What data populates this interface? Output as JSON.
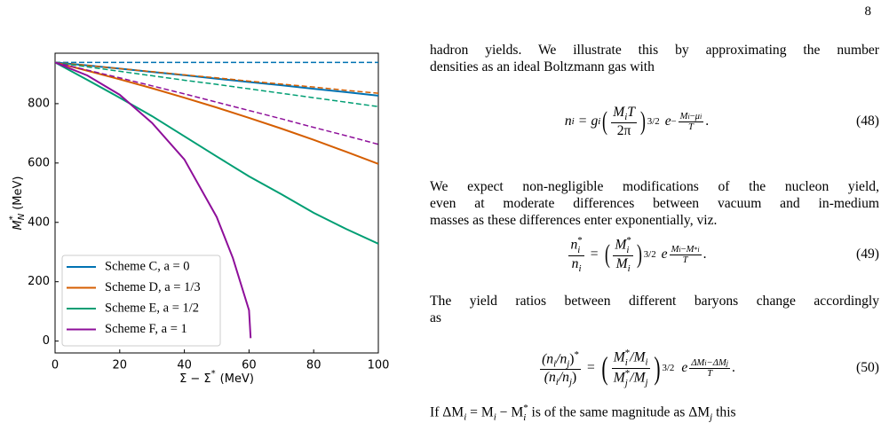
{
  "page_number": "8",
  "chart_data": {
    "type": "line",
    "ylabel": {
      "symbol": "M",
      "sup": "*",
      "sub": "N",
      "unit": "(MeV)"
    },
    "xlabel": {
      "main": "Σ − Σ",
      "sup": "*",
      "unit": "(MeV)"
    },
    "xlim": [
      0,
      100
    ],
    "ylim": [
      -40,
      970
    ],
    "xticks": [
      0,
      20,
      40,
      60,
      80,
      100
    ],
    "yticks": [
      0,
      200,
      400,
      600,
      800
    ],
    "legend": "lower left",
    "series": [
      {
        "name": "Scheme C, a = 0",
        "color": "#0072b2",
        "x": [
          0,
          10,
          20,
          30,
          40,
          50,
          60,
          70,
          80,
          90,
          100
        ],
        "values": [
          939,
          929,
          918,
          907,
          896,
          884,
          873,
          862,
          850,
          839,
          827
        ]
      },
      {
        "name": "Scheme D, a = 1/3",
        "color": "#d55e00",
        "x": [
          0,
          10,
          20,
          30,
          40,
          50,
          60,
          70,
          80,
          90,
          100
        ],
        "values": [
          939,
          911,
          882,
          852,
          820,
          787,
          752,
          716,
          678,
          638,
          597
        ]
      },
      {
        "name": "Scheme E, a = 1/2",
        "color": "#009e73",
        "x": [
          0,
          10,
          20,
          30,
          40,
          50,
          60,
          70,
          80,
          90,
          100
        ],
        "values": [
          939,
          880,
          820,
          758,
          690,
          622,
          555,
          495,
          432,
          378,
          328
        ]
      },
      {
        "name": "Scheme F, a = 1",
        "color": "#8e0f9a",
        "x": [
          0,
          10,
          20,
          30,
          40,
          50,
          55,
          60,
          60.5
        ],
        "values": [
          939,
          895,
          830,
          735,
          612,
          418,
          280,
          104,
          10
        ]
      },
      {
        "color": "#0072b2",
        "dash": true,
        "x": [
          0,
          100
        ],
        "values": [
          939,
          939
        ]
      },
      {
        "color": "#d55e00",
        "dash": true,
        "x": [
          0,
          10,
          20,
          30,
          40,
          50,
          60,
          70,
          80,
          90,
          100
        ],
        "values": [
          939,
          929,
          918,
          908,
          897,
          887,
          876,
          866,
          856,
          845,
          835
        ]
      },
      {
        "color": "#009e73",
        "dash": true,
        "x": [
          0,
          10,
          20,
          30,
          40,
          50,
          60,
          70,
          80,
          90,
          100
        ],
        "values": [
          939,
          924,
          909,
          894,
          879,
          865,
          850,
          835,
          820,
          805,
          790
        ]
      },
      {
        "color": "#8e0f9a",
        "dash": true,
        "x": [
          0,
          10,
          20,
          30,
          40,
          50,
          60,
          70,
          80,
          90,
          100
        ],
        "values": [
          939,
          913,
          887,
          860,
          833,
          805,
          777,
          749,
          720,
          692,
          663
        ]
      }
    ]
  },
  "text": {
    "paragraphs": [
      [
        "hadron yields. We illustrate this by approximating the number",
        "densities as an ideal Boltzmann gas with"
      ],
      [
        "We expect non-negligible modifications of the nucleon yield,",
        "even at moderate differences between vacuum and in-medium",
        "masses as these differences enter exponentially, viz."
      ],
      [
        "The yield ratios between different baryons change accordingly",
        "as"
      ]
    ],
    "equations": [
      {
        "tokens": [
          "n",
          "i",
          "=",
          "g",
          "i",
          "(",
          "M",
          "i",
          "T",
          "2π",
          ")",
          "3/2",
          "e",
          "−",
          "M",
          "i",
          "−",
          "μ",
          "i",
          "T",
          "."
        ],
        "number": "(48)"
      },
      {
        "tokens": [
          "n",
          "*",
          "i",
          "n",
          "i",
          "=",
          "(",
          "M",
          "*",
          "i",
          "M",
          "i",
          ")",
          "3/2",
          "e",
          "M",
          "i",
          "−",
          "M",
          "*",
          "i",
          "T",
          "."
        ],
        "number": "(49)"
      },
      {
        "tokens": [
          "(n",
          "i",
          "/n",
          "j",
          ")",
          "*",
          "(n",
          "i",
          "/n",
          "j",
          ")",
          "=",
          "(",
          "M",
          "*",
          "i",
          "/M",
          "i",
          "M",
          "*",
          "j",
          "/M",
          "j",
          ")",
          "3/2",
          "e",
          "ΔM",
          "i",
          "−ΔM",
          "j",
          "T",
          "."
        ],
        "number": "(50)"
      }
    ],
    "last_line": [
      "If ΔM",
      "i",
      "= M",
      "i",
      "− M",
      "*",
      "i",
      "is of the same magnitude as ΔM",
      "j",
      "this"
    ]
  }
}
